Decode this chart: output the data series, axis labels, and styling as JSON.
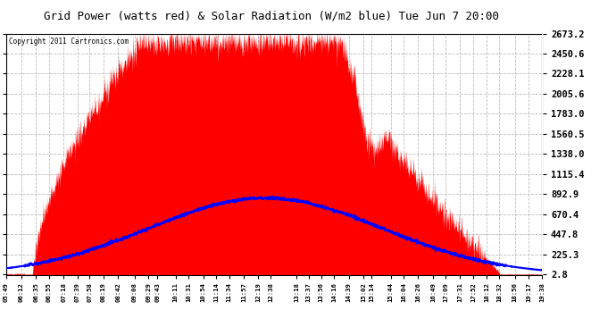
{
  "title": "Grid Power (watts red) & Solar Radiation (W/m2 blue) Tue Jun 7 20:00",
  "copyright": "Copyright 2011 Cartronics.com",
  "background_color": "#ffffff",
  "plot_bg_color": "#ffffff",
  "yticks": [
    2.8,
    225.3,
    447.8,
    670.4,
    892.9,
    1115.4,
    1338.0,
    1560.5,
    1783.0,
    2005.6,
    2228.1,
    2450.6,
    2673.2
  ],
  "ymax": 2673.2,
  "ymin": 2.8,
  "grid_color": "#bbbbbb",
  "fill_color": "#ff0000",
  "line_color": "#0000ff",
  "solar_peak": 850.0,
  "solar_peak_time": 12.5,
  "solar_sigma": 3.0,
  "grid_peak": 2580.0,
  "grid_peak_time": 12.5,
  "xtick_labels": [
    "05:49",
    "06:12",
    "06:35",
    "06:55",
    "07:18",
    "07:39",
    "07:58",
    "08:19",
    "08:42",
    "09:08",
    "09:29",
    "09:43",
    "10:11",
    "10:31",
    "10:54",
    "11:14",
    "11:34",
    "11:57",
    "12:19",
    "12:38",
    "13:18",
    "13:37",
    "13:56",
    "14:16",
    "14:39",
    "15:02",
    "15:14",
    "15:44",
    "16:04",
    "16:26",
    "16:49",
    "17:09",
    "17:31",
    "17:52",
    "18:12",
    "18:32",
    "18:56",
    "19:17",
    "19:38"
  ]
}
